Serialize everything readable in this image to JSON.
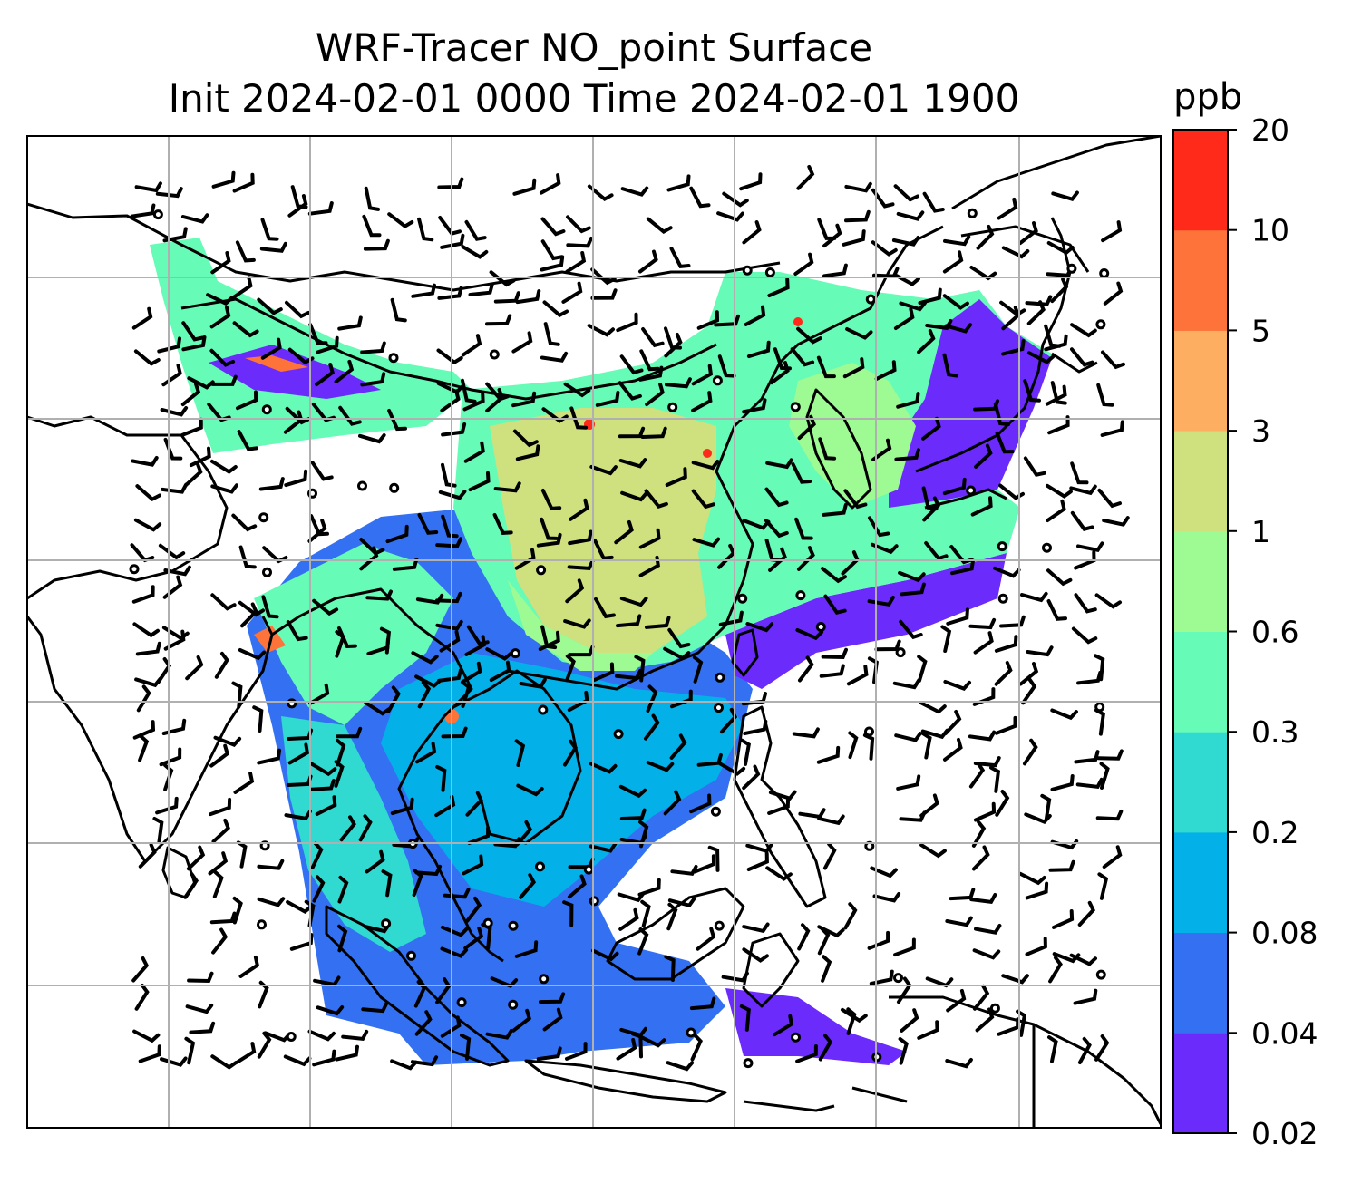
{
  "title": {
    "line1": "WRF-Tracer NO_point Surface",
    "line2": "Init 2024-02-01 0000 Time 2024-02-01 1900"
  },
  "colorbar": {
    "unit": "ppb",
    "levels": [
      "0.02",
      "0.04",
      "0.08",
      "0.2",
      "0.3",
      "0.6",
      "1",
      "3",
      "5",
      "10",
      "20"
    ],
    "colors": [
      "#6a2bfb",
      "#3471f2",
      "#03b1e8",
      "#30dad1",
      "#66fbb6",
      "#9efa92",
      "#cfe07f",
      "#fdae61",
      "#fe7339",
      "#ff2a1a"
    ]
  },
  "map": {
    "gridline_color": "#b0b0b0",
    "coastline_color": "#000000",
    "wind_barbs": true
  }
}
